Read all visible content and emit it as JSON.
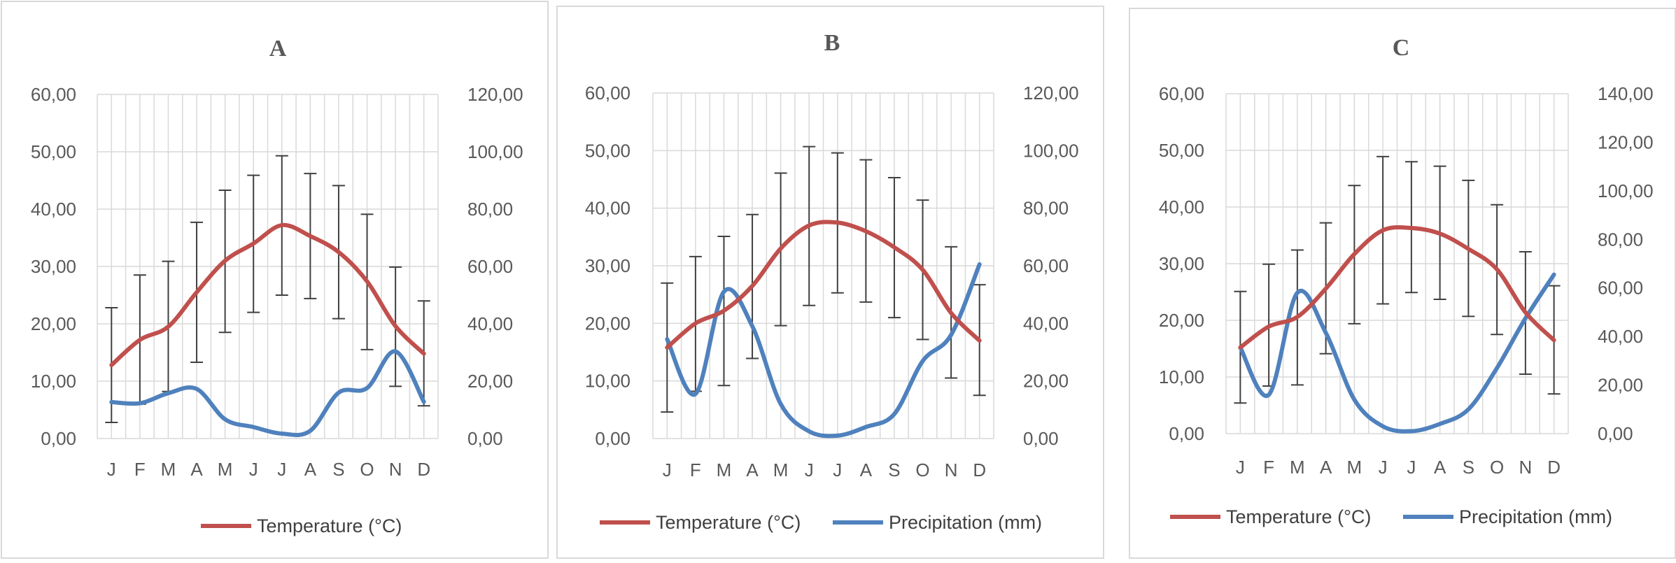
{
  "colors": {
    "temperature": "#c0504d",
    "precipitation": "#4f81bd",
    "grid": "#d9d9d9",
    "error_bar": "#404040",
    "text": "#595959"
  },
  "chart_data": [
    {
      "type": "line",
      "title": "A",
      "categories": [
        "J",
        "F",
        "M",
        "A",
        "M",
        "J",
        "J",
        "A",
        "S",
        "O",
        "N",
        "D"
      ],
      "y_left": {
        "lim": [
          0,
          60
        ],
        "ticks": [
          "0,00",
          "10,00",
          "20,00",
          "30,00",
          "40,00",
          "50,00",
          "60,00"
        ]
      },
      "y_right": {
        "lim": [
          0,
          120
        ],
        "ticks": [
          "0,00",
          "20,00",
          "40,00",
          "60,00",
          "80,00",
          "100,00",
          "120,00"
        ]
      },
      "series": [
        {
          "name": "Temperature (°C)",
          "axis": "left",
          "values": [
            12.8,
            17.2,
            19.5,
            25.5,
            31.0,
            34.0,
            37.2,
            35.3,
            32.5,
            27.4,
            19.6,
            14.8
          ],
          "error_low": [
            2.8,
            6.0,
            8.2,
            13.3,
            18.5,
            22.0,
            25.0,
            24.4,
            20.9,
            15.5,
            9.1,
            5.7
          ],
          "error_high": [
            22.8,
            28.5,
            30.9,
            37.7,
            43.3,
            45.9,
            49.3,
            46.2,
            44.1,
            39.1,
            29.9,
            24.0
          ]
        },
        {
          "name": "Precipitation (mm)",
          "axis": "right",
          "values": [
            12.7,
            12.3,
            15.8,
            17.3,
            6.7,
            4.0,
            1.7,
            2.7,
            16.0,
            17.6,
            30.4,
            12.8
          ]
        }
      ],
      "legend": {
        "position": "bottom",
        "entries": [
          "Temperature (°C)"
        ]
      },
      "grid": true
    },
    {
      "type": "line",
      "title": "B",
      "categories": [
        "J",
        "F",
        "M",
        "A",
        "M",
        "J",
        "J",
        "A",
        "S",
        "O",
        "N",
        "D"
      ],
      "y_left": {
        "lim": [
          0,
          60
        ],
        "ticks": [
          "0,00",
          "10,00",
          "20,00",
          "30,00",
          "40,00",
          "50,00",
          "60,00"
        ]
      },
      "y_right": {
        "lim": [
          0,
          120
        ],
        "ticks": [
          "0,00",
          "20,00",
          "40,00",
          "60,00",
          "80,00",
          "100,00",
          "120,00"
        ]
      },
      "series": [
        {
          "name": "Temperature (°C)",
          "axis": "left",
          "values": [
            15.8,
            20.0,
            22.2,
            26.5,
            33.0,
            37.0,
            37.5,
            36.0,
            33.2,
            29.3,
            21.8,
            17.0
          ],
          "error_low": [
            4.6,
            8.2,
            9.2,
            13.9,
            19.6,
            23.1,
            25.3,
            23.7,
            21.0,
            17.2,
            10.5,
            7.5
          ],
          "error_high": [
            27.0,
            31.6,
            35.1,
            38.9,
            46.1,
            50.7,
            49.6,
            48.4,
            45.3,
            41.4,
            33.3,
            26.7
          ]
        },
        {
          "name": "Precipitation (mm)",
          "axis": "right",
          "values": [
            34.5,
            15.5,
            51.0,
            39.0,
            12.0,
            2.5,
            1.0,
            4.0,
            8.5,
            26.9,
            36.0,
            60.5
          ]
        }
      ],
      "legend": {
        "position": "bottom",
        "entries": [
          "Temperature (°C)",
          "Precipitation (mm)"
        ]
      },
      "grid": true
    },
    {
      "type": "line",
      "title": "C",
      "categories": [
        "J",
        "F",
        "M",
        "A",
        "M",
        "J",
        "J",
        "A",
        "S",
        "O",
        "N",
        "D"
      ],
      "y_left": {
        "lim": [
          0,
          60
        ],
        "ticks": [
          "0,00",
          "10,00",
          "20,00",
          "30,00",
          "40,00",
          "50,00",
          "60,00"
        ]
      },
      "y_right": {
        "lim": [
          0,
          140
        ],
        "ticks": [
          "0,00",
          "20,00",
          "40,00",
          "60,00",
          "80,00",
          "100,00",
          "120,00",
          "140,00"
        ]
      },
      "series": [
        {
          "name": "Temperature (°C)",
          "axis": "left",
          "values": [
            15.2,
            18.9,
            20.6,
            25.6,
            31.7,
            35.9,
            36.3,
            35.3,
            32.6,
            29.0,
            21.4,
            16.5
          ],
          "error_low": [
            5.4,
            8.4,
            8.6,
            14.1,
            19.4,
            22.9,
            24.9,
            23.7,
            20.7,
            17.5,
            10.5,
            7.0
          ],
          "error_high": [
            25.1,
            29.9,
            32.4,
            37.2,
            43.8,
            48.9,
            48.0,
            47.2,
            44.7,
            40.4,
            32.1,
            26.1
          ]
        },
        {
          "name": "Precipitation (mm)",
          "axis": "right",
          "values": [
            35.5,
            16.0,
            58.0,
            41.5,
            14.0,
            3.0,
            1.0,
            4.0,
            10.0,
            27.0,
            47.5,
            65.5
          ]
        }
      ],
      "legend": {
        "position": "bottom",
        "entries": [
          "Temperature (°C)",
          "Precipitation (mm)"
        ]
      },
      "grid": true
    }
  ]
}
